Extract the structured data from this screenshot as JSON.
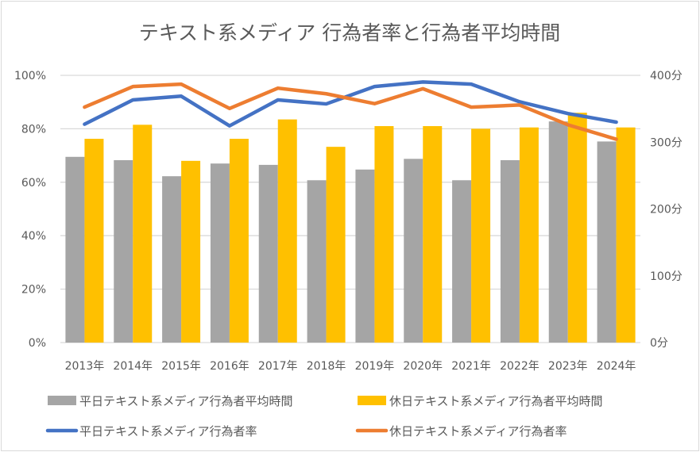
{
  "chart_data": {
    "type": "bar+line",
    "title": "テキスト系メディア 行為者率と行為者平均時間",
    "categories": [
      "2013年",
      "2014年",
      "2015年",
      "2016年",
      "2017年",
      "2018年",
      "2019年",
      "2020年",
      "2021年",
      "2022年",
      "2023年",
      "2024年"
    ],
    "left_axis": {
      "ticks": [
        "0%",
        "20%",
        "40%",
        "60%",
        "80%",
        "100%"
      ],
      "range": [
        0,
        100
      ]
    },
    "right_axis": {
      "ticks": [
        "0分",
        "100分",
        "200分",
        "300分",
        "400分"
      ],
      "range": [
        0,
        400
      ]
    },
    "grid": true,
    "legend_position": "bottom",
    "series": [
      {
        "name": "平日テキスト系メディア行為者平均時間",
        "type": "bar",
        "axis": "right",
        "color": "#a5a5a5",
        "values": [
          278,
          273,
          249,
          268,
          266,
          243,
          259,
          275,
          243,
          273,
          331,
          301
        ]
      },
      {
        "name": "休日テキスト系メディア行為者平均時間",
        "type": "bar",
        "axis": "right",
        "color": "#ffc000",
        "values": [
          305,
          326,
          272,
          305,
          334,
          293,
          324,
          324,
          320,
          322,
          344,
          322
        ]
      },
      {
        "name": "平日テキスト系メディア行為者率",
        "type": "line",
        "axis": "left",
        "color": "#4472c4",
        "values": [
          81.7,
          90.8,
          92.2,
          81.1,
          90.8,
          89.3,
          95.8,
          97.5,
          96.7,
          90.1,
          85.7,
          82.5
        ]
      },
      {
        "name": "休日テキスト系メディア行為者率",
        "type": "line",
        "axis": "left",
        "color": "#ed7d31",
        "values": [
          88.1,
          95.8,
          96.7,
          87.6,
          95.2,
          93.1,
          89.4,
          95.0,
          88.1,
          88.9,
          81.5,
          76.1
        ]
      }
    ]
  }
}
